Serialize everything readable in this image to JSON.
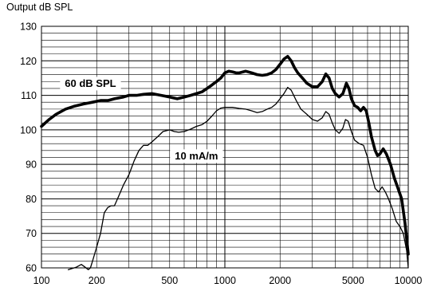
{
  "chart_data": {
    "type": "line",
    "title": "",
    "ylabel": "Output dB SPL",
    "xlabel": "",
    "xscale": "log",
    "xlim": [
      100,
      10000
    ],
    "ylim": [
      60,
      130
    ],
    "grid": true,
    "x_tick_labels": [
      "100",
      "200",
      "500",
      "1000",
      "2000",
      "5000",
      "10000"
    ],
    "x_tick_values": [
      100,
      200,
      500,
      1000,
      2000,
      5000,
      10000
    ],
    "y_tick_values": [
      60,
      70,
      80,
      90,
      100,
      110,
      120,
      130
    ],
    "y_tick_labels": [
      "60",
      "70",
      "80",
      "90",
      "100",
      "110",
      "120",
      "130"
    ],
    "series": [
      {
        "name": "60 dB SPL",
        "line_weight": "bold",
        "color": "#000000",
        "points": [
          [
            100,
            101
          ],
          [
            110,
            103
          ],
          [
            120,
            104.5
          ],
          [
            135,
            106
          ],
          [
            150,
            106.8
          ],
          [
            170,
            107.5
          ],
          [
            190,
            108
          ],
          [
            210,
            108.5
          ],
          [
            230,
            108.5
          ],
          [
            250,
            109
          ],
          [
            280,
            109.5
          ],
          [
            300,
            110
          ],
          [
            330,
            110
          ],
          [
            360,
            110.3
          ],
          [
            400,
            110.5
          ],
          [
            450,
            110
          ],
          [
            500,
            109.5
          ],
          [
            550,
            109
          ],
          [
            600,
            109.5
          ],
          [
            650,
            110
          ],
          [
            700,
            110.5
          ],
          [
            750,
            111
          ],
          [
            800,
            112
          ],
          [
            850,
            113
          ],
          [
            900,
            114
          ],
          [
            950,
            115
          ],
          [
            1000,
            116.5
          ],
          [
            1050,
            117
          ],
          [
            1100,
            116.8
          ],
          [
            1150,
            116.5
          ],
          [
            1200,
            116.5
          ],
          [
            1300,
            117
          ],
          [
            1400,
            116.5
          ],
          [
            1500,
            116
          ],
          [
            1600,
            115.8
          ],
          [
            1700,
            116
          ],
          [
            1800,
            116.5
          ],
          [
            1900,
            117.5
          ],
          [
            2000,
            119
          ],
          [
            2100,
            120.5
          ],
          [
            2200,
            121.3
          ],
          [
            2300,
            120
          ],
          [
            2400,
            118
          ],
          [
            2500,
            116.5
          ],
          [
            2650,
            115
          ],
          [
            2800,
            113.5
          ],
          [
            3000,
            112.5
          ],
          [
            3200,
            112.5
          ],
          [
            3400,
            114
          ],
          [
            3550,
            116.2
          ],
          [
            3700,
            115
          ],
          [
            3850,
            112
          ],
          [
            4000,
            110.5
          ],
          [
            4200,
            109.5
          ],
          [
            4400,
            110.5
          ],
          [
            4600,
            113.5
          ],
          [
            4750,
            112
          ],
          [
            4900,
            109
          ],
          [
            5100,
            107
          ],
          [
            5300,
            106.5
          ],
          [
            5500,
            105.5
          ],
          [
            5700,
            106.5
          ],
          [
            5900,
            105.5
          ],
          [
            6100,
            102
          ],
          [
            6300,
            98
          ],
          [
            6600,
            94
          ],
          [
            6800,
            92.5
          ],
          [
            7000,
            93
          ],
          [
            7300,
            94.5
          ],
          [
            7600,
            93
          ],
          [
            8000,
            90
          ],
          [
            8400,
            86
          ],
          [
            8800,
            83
          ],
          [
            9200,
            80
          ],
          [
            9600,
            73
          ],
          [
            10000,
            64
          ]
        ]
      },
      {
        "name": "10 mA/m",
        "line_weight": "thin",
        "color": "#000000",
        "points": [
          [
            140,
            59.5
          ],
          [
            155,
            60.2
          ],
          [
            165,
            61
          ],
          [
            170,
            60.5
          ],
          [
            180,
            59.5
          ],
          [
            185,
            60
          ],
          [
            190,
            62
          ],
          [
            200,
            66
          ],
          [
            210,
            70
          ],
          [
            220,
            76
          ],
          [
            230,
            77.5
          ],
          [
            240,
            78
          ],
          [
            250,
            78
          ],
          [
            260,
            80
          ],
          [
            280,
            84
          ],
          [
            300,
            87
          ],
          [
            320,
            91
          ],
          [
            340,
            94
          ],
          [
            360,
            95.5
          ],
          [
            380,
            95.5
          ],
          [
            400,
            96.5
          ],
          [
            430,
            98
          ],
          [
            460,
            99.5
          ],
          [
            500,
            100
          ],
          [
            530,
            99.5
          ],
          [
            560,
            99.3
          ],
          [
            600,
            99.5
          ],
          [
            650,
            100.2
          ],
          [
            700,
            101
          ],
          [
            750,
            101.5
          ],
          [
            800,
            102.5
          ],
          [
            850,
            104
          ],
          [
            900,
            105.5
          ],
          [
            950,
            106.3
          ],
          [
            1000,
            106.5
          ],
          [
            1100,
            106.5
          ],
          [
            1200,
            106.2
          ],
          [
            1300,
            106
          ],
          [
            1400,
            105.5
          ],
          [
            1500,
            105
          ],
          [
            1600,
            105.3
          ],
          [
            1700,
            106
          ],
          [
            1800,
            106.5
          ],
          [
            1900,
            107.5
          ],
          [
            2000,
            109
          ],
          [
            2100,
            110.5
          ],
          [
            2200,
            112.3
          ],
          [
            2300,
            111.5
          ],
          [
            2450,
            108.5
          ],
          [
            2600,
            106
          ],
          [
            2800,
            104.5
          ],
          [
            3000,
            103
          ],
          [
            3200,
            102.5
          ],
          [
            3400,
            103.5
          ],
          [
            3550,
            105.3
          ],
          [
            3700,
            104.5
          ],
          [
            3850,
            102
          ],
          [
            4000,
            100
          ],
          [
            4200,
            99
          ],
          [
            4400,
            100.5
          ],
          [
            4550,
            103
          ],
          [
            4700,
            102.5
          ],
          [
            4900,
            99.5
          ],
          [
            5100,
            97
          ],
          [
            5400,
            96
          ],
          [
            5700,
            95.5
          ],
          [
            6000,
            92
          ],
          [
            6300,
            87
          ],
          [
            6600,
            83
          ],
          [
            6900,
            82
          ],
          [
            7200,
            83.5
          ],
          [
            7500,
            82
          ],
          [
            7800,
            80
          ],
          [
            8200,
            77
          ],
          [
            8600,
            73.5
          ],
          [
            9000,
            72
          ],
          [
            9400,
            70
          ],
          [
            9800,
            65
          ],
          [
            10000,
            60
          ]
        ]
      }
    ],
    "annotations": [
      {
        "text": "60 dB SPL",
        "x": 185,
        "y": 113.5,
        "series": 0
      },
      {
        "text": "10 mA/m",
        "x": 700,
        "y": 92.5,
        "series": 1
      }
    ]
  }
}
